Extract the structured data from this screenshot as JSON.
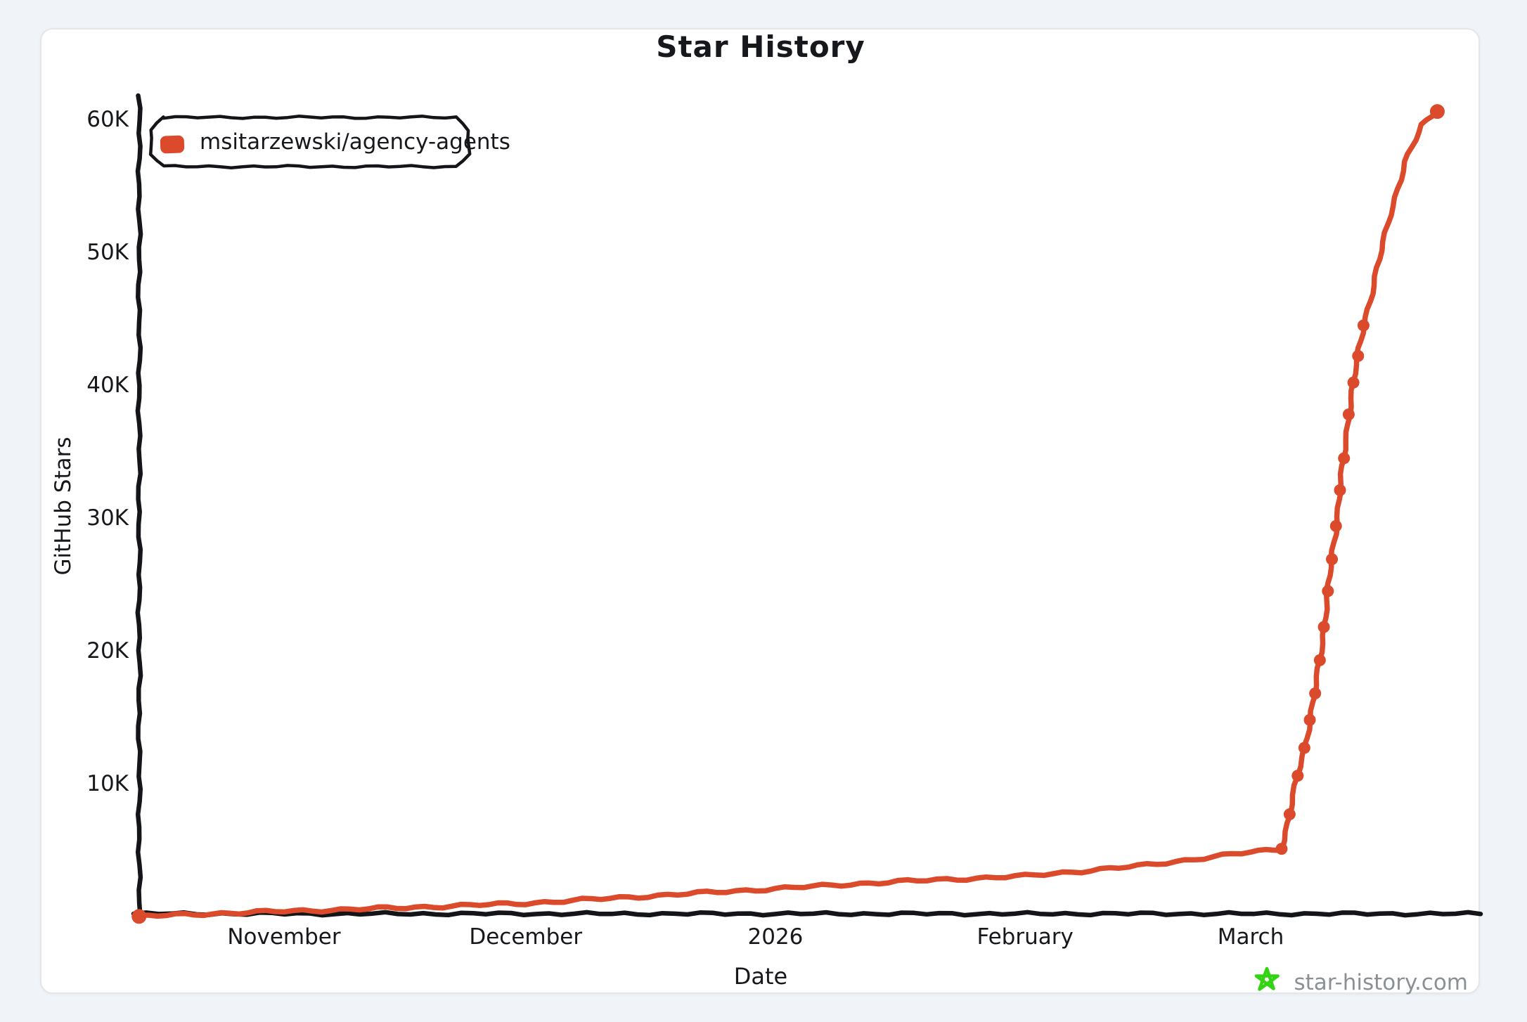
{
  "header": {
    "title": "Star History"
  },
  "legend": {
    "series_label": "msitarzewski/agency-agents",
    "marker_color": "#DB4A2B"
  },
  "axes": {
    "x_title": "Date",
    "y_title": "GitHub Stars"
  },
  "watermark": {
    "text": "star-history.com",
    "star_color": "#35d315"
  },
  "colors": {
    "line": "#DB4A2B",
    "axis": "#141518",
    "text": "#16181c"
  },
  "chart_data": {
    "type": "line",
    "title": "Star History",
    "xlabel": "Date",
    "ylabel": "GitHub Stars",
    "x_range": [
      "2025-10-14",
      "2026-03-26"
    ],
    "ylim": [
      0,
      62000
    ],
    "grid": false,
    "legend_position": "top-left",
    "y_ticks": [
      {
        "label": "10K",
        "value": 10000
      },
      {
        "label": "20K",
        "value": 20000
      },
      {
        "label": "30K",
        "value": 30000
      },
      {
        "label": "40K",
        "value": 40000
      },
      {
        "label": "50K",
        "value": 50000
      },
      {
        "label": "60K",
        "value": 60000
      }
    ],
    "x_ticks": [
      {
        "label": "November",
        "date": "2025-11-01"
      },
      {
        "label": "December",
        "date": "2025-12-01"
      },
      {
        "label": "2026",
        "date": "2026-01-01"
      },
      {
        "label": "February",
        "date": "2026-02-01"
      },
      {
        "label": "March",
        "date": "2026-03-01"
      }
    ],
    "series": [
      {
        "name": "msitarzewski/agency-agents",
        "color": "#DB4A2B",
        "points": [
          {
            "date": "2025-10-14",
            "stars": 10,
            "marker": true
          },
          {
            "date": "2025-10-22",
            "stars": 200,
            "marker": false
          },
          {
            "date": "2025-11-01",
            "stars": 400,
            "marker": false
          },
          {
            "date": "2025-11-08",
            "stars": 520,
            "marker": false
          },
          {
            "date": "2025-11-15",
            "stars": 650,
            "marker": false
          },
          {
            "date": "2025-12-01",
            "stars": 1000,
            "marker": false
          },
          {
            "date": "2025-12-15",
            "stars": 1500,
            "marker": false
          },
          {
            "date": "2026-01-01",
            "stars": 2100,
            "marker": false
          },
          {
            "date": "2026-01-15",
            "stars": 2600,
            "marker": false
          },
          {
            "date": "2026-02-01",
            "stars": 3050,
            "marker": false
          },
          {
            "date": "2026-02-15",
            "stars": 3800,
            "marker": false
          },
          {
            "date": "2026-03-01",
            "stars": 4850,
            "marker": false
          },
          {
            "date": "2026-03-04T20:00",
            "stars": 5100,
            "marker": true
          },
          {
            "date": "2026-03-05T20:00",
            "stars": 7700,
            "marker": true
          },
          {
            "date": "2026-03-06T20:00",
            "stars": 10600,
            "marker": true
          },
          {
            "date": "2026-03-07T16:00",
            "stars": 12700,
            "marker": true
          },
          {
            "date": "2026-03-08T08:00",
            "stars": 14800,
            "marker": true
          },
          {
            "date": "2026-03-09T00:00",
            "stars": 16800,
            "marker": true
          },
          {
            "date": "2026-03-09T14:00",
            "stars": 19300,
            "marker": true
          },
          {
            "date": "2026-03-10T02:00",
            "stars": 21800,
            "marker": true
          },
          {
            "date": "2026-03-10T14:00",
            "stars": 24500,
            "marker": true
          },
          {
            "date": "2026-03-11T02:00",
            "stars": 26900,
            "marker": true
          },
          {
            "date": "2026-03-11T14:00",
            "stars": 29400,
            "marker": true
          },
          {
            "date": "2026-03-12T02:00",
            "stars": 32100,
            "marker": true
          },
          {
            "date": "2026-03-12T14:00",
            "stars": 34500,
            "marker": true
          },
          {
            "date": "2026-03-13T04:00",
            "stars": 37800,
            "marker": true
          },
          {
            "date": "2026-03-13T18:00",
            "stars": 40200,
            "marker": true
          },
          {
            "date": "2026-03-14T08:00",
            "stars": 42200,
            "marker": true
          },
          {
            "date": "2026-03-15T00:00",
            "stars": 44500,
            "marker": true
          },
          {
            "date": "2026-03-16T06:00",
            "stars": 47500,
            "marker": false
          },
          {
            "date": "2026-03-18T06:00",
            "stars": 52800,
            "marker": false
          },
          {
            "date": "2026-03-20T06:00",
            "stars": 56800,
            "marker": false
          },
          {
            "date": "2026-03-22T06:00",
            "stars": 59600,
            "marker": false
          },
          {
            "date": "2026-03-24T04:00",
            "stars": 60600,
            "marker": true
          }
        ]
      }
    ]
  }
}
